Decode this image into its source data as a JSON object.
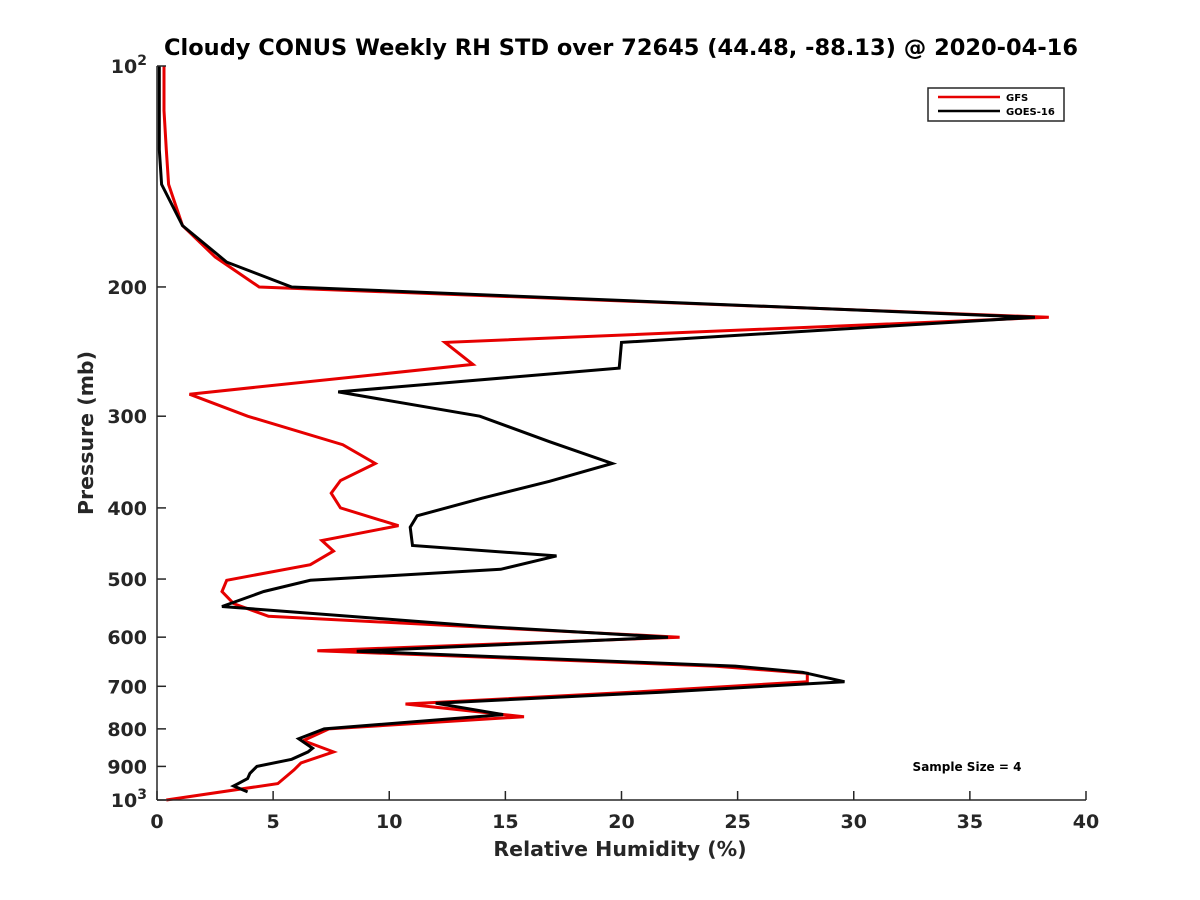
{
  "chart_data": {
    "type": "line",
    "title": "Cloudy CONUS Weekly RH STD over 72645 (44.48, -88.13) @ 2020-04-16",
    "xlabel": "Relative Humidity (%)",
    "ylabel": "Pressure (mb)",
    "xlim": [
      0,
      40
    ],
    "ylim": [
      100,
      1000
    ],
    "y_scale": "log",
    "y_reversed": true,
    "x_ticks": [
      0,
      5,
      10,
      15,
      20,
      25,
      30,
      35,
      40
    ],
    "y_ticks": [
      {
        "value": 100,
        "base": "10",
        "exp": "2"
      },
      {
        "value": 200,
        "label": "200"
      },
      {
        "value": 300,
        "label": "300"
      },
      {
        "value": 400,
        "label": "400"
      },
      {
        "value": 500,
        "label": "500"
      },
      {
        "value": 600,
        "label": "600"
      },
      {
        "value": 700,
        "label": "700"
      },
      {
        "value": 800,
        "label": "800"
      },
      {
        "value": 900,
        "label": "900"
      },
      {
        "value": 1000,
        "base": "10",
        "exp": "3"
      }
    ],
    "grid": false,
    "legend_position": "top-right",
    "annotation": "Sample Size = 4",
    "series": [
      {
        "name": "GFS",
        "color": "#e60000",
        "points": [
          [
            0.3,
            100
          ],
          [
            0.3,
            115
          ],
          [
            0.4,
            130
          ],
          [
            0.5,
            145
          ],
          [
            1.1,
            165
          ],
          [
            2.5,
            182
          ],
          [
            4.4,
            200
          ],
          [
            38.4,
            220
          ],
          [
            12.4,
            238
          ],
          [
            13.6,
            255
          ],
          [
            1.4,
            280
          ],
          [
            3.9,
            300
          ],
          [
            8.0,
            328
          ],
          [
            9.4,
            348
          ],
          [
            7.9,
            367
          ],
          [
            7.5,
            382
          ],
          [
            7.9,
            400
          ],
          [
            10.4,
            423
          ],
          [
            7.1,
            443
          ],
          [
            7.6,
            458
          ],
          [
            6.6,
            478
          ],
          [
            3.0,
            502
          ],
          [
            2.8,
            520
          ],
          [
            3.3,
            540
          ],
          [
            4.8,
            562
          ],
          [
            22.5,
            600
          ],
          [
            6.9,
            626
          ],
          [
            24.0,
            657
          ],
          [
            28.0,
            672
          ],
          [
            28.0,
            690
          ],
          [
            20.4,
            713
          ],
          [
            10.7,
            740
          ],
          [
            15.8,
            770
          ],
          [
            7.4,
            800
          ],
          [
            6.3,
            830
          ],
          [
            7.6,
            860
          ],
          [
            6.2,
            890
          ],
          [
            5.9,
            910
          ],
          [
            5.2,
            950
          ],
          [
            0.4,
            1000
          ]
        ]
      },
      {
        "name": "GOES-16",
        "color": "#000000",
        "points": [
          [
            0.1,
            100
          ],
          [
            0.1,
            120
          ],
          [
            0.1,
            130
          ],
          [
            0.2,
            145
          ],
          [
            1.1,
            165
          ],
          [
            3.0,
            185
          ],
          [
            5.8,
            200
          ],
          [
            37.8,
            220
          ],
          [
            20.0,
            238
          ],
          [
            19.9,
            258
          ],
          [
            7.8,
            278
          ],
          [
            13.9,
            300
          ],
          [
            16.9,
            325
          ],
          [
            19.6,
            348
          ],
          [
            16.9,
            368
          ],
          [
            14.0,
            388
          ],
          [
            11.2,
            410
          ],
          [
            10.9,
            425
          ],
          [
            11.0,
            450
          ],
          [
            17.2,
            465
          ],
          [
            14.8,
            485
          ],
          [
            6.6,
            502
          ],
          [
            4.6,
            520
          ],
          [
            2.8,
            545
          ],
          [
            14.0,
            580
          ],
          [
            22.0,
            600
          ],
          [
            8.6,
            627
          ],
          [
            24.9,
            657
          ],
          [
            27.8,
            670
          ],
          [
            29.6,
            690
          ],
          [
            21.7,
            713
          ],
          [
            12.0,
            738
          ],
          [
            14.9,
            765
          ],
          [
            7.2,
            800
          ],
          [
            6.1,
            825
          ],
          [
            6.7,
            850
          ],
          [
            6.5,
            860
          ],
          [
            5.8,
            880
          ],
          [
            4.3,
            900
          ],
          [
            4.0,
            920
          ],
          [
            3.9,
            935
          ],
          [
            3.5,
            950
          ],
          [
            3.3,
            957
          ],
          [
            3.9,
            975
          ]
        ]
      }
    ]
  }
}
